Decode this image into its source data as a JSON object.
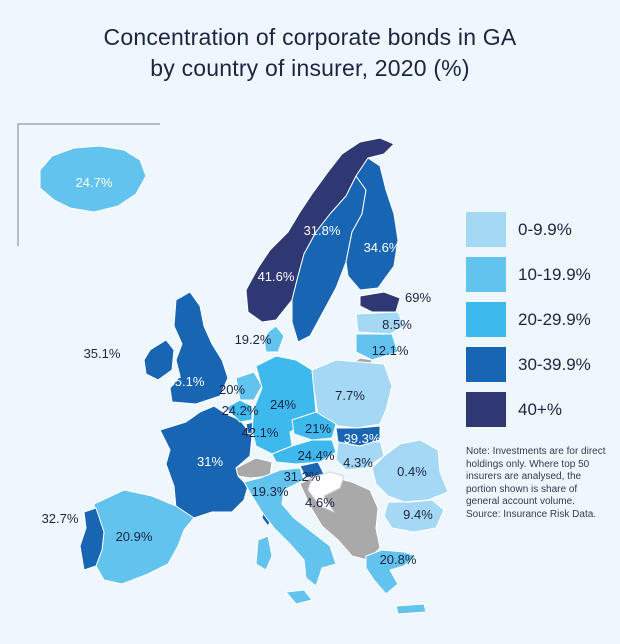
{
  "title": {
    "line1": "Concentration of corporate bonds in GA",
    "line2": "by country of insurer, 2020 (%)"
  },
  "colors": {
    "background": "#eef7fd",
    "sea": "#eef7fd",
    "bin_0_9_9": "#a4d8f5",
    "bin_10_19_9": "#63c3ef",
    "bin_20_29_9": "#3eb9ee",
    "bin_30_39_9": "#1865b4",
    "bin_40_plus": "#2f3872",
    "no_data": "#a9a9a9"
  },
  "legend": [
    {
      "label": "0-9.9%",
      "color": "#a4d8f5"
    },
    {
      "label": "10-19.9%",
      "color": "#63c3ef"
    },
    {
      "label": "20-29.9%",
      "color": "#3eb9ee"
    },
    {
      "label": "30-39.9%",
      "color": "#1865b4"
    },
    {
      "label": "40+%",
      "color": "#2f3872"
    }
  ],
  "note": "Note: Investments are for direct holdings only. Where top 50 insurers are analysed, the portion shown is share of general account volume. Source: Insurance Risk Data.",
  "countries": [
    {
      "name": "Iceland",
      "value_label": "24.7%"
    },
    {
      "name": "Norway",
      "value_label": "41.6%"
    },
    {
      "name": "Sweden",
      "value_label": "31.8%"
    },
    {
      "name": "Finland",
      "value_label": "34.6%"
    },
    {
      "name": "Estonia",
      "value_label": "69%"
    },
    {
      "name": "Latvia",
      "value_label": "8.5%"
    },
    {
      "name": "Lithuania",
      "value_label": "12.1%"
    },
    {
      "name": "Denmark",
      "value_label": "19.2%"
    },
    {
      "name": "Ireland",
      "value_label": "35.1%"
    },
    {
      "name": "United Kingdom",
      "value_label": "35.1%"
    },
    {
      "name": "Netherlands",
      "value_label": "20%"
    },
    {
      "name": "Belgium",
      "value_label": "24.2%"
    },
    {
      "name": "Luxembourg",
      "value_label": "42.1%"
    },
    {
      "name": "Germany",
      "value_label": "24%"
    },
    {
      "name": "Poland",
      "value_label": "7.7%"
    },
    {
      "name": "Czech Republic",
      "value_label": "21%"
    },
    {
      "name": "Slovakia",
      "value_label": "39.3%"
    },
    {
      "name": "Austria",
      "value_label": "24.4%"
    },
    {
      "name": "Hungary",
      "value_label": "4.3%"
    },
    {
      "name": "Slovenia",
      "value_label": "31.2%"
    },
    {
      "name": "France",
      "value_label": "31%"
    },
    {
      "name": "Italy",
      "value_label": "19.3%"
    },
    {
      "name": "Croatia",
      "value_label": "4.6%"
    },
    {
      "name": "Romania",
      "value_label": "0.4%"
    },
    {
      "name": "Bulgaria",
      "value_label": "9.4%"
    },
    {
      "name": "Greece",
      "value_label": "20.8%"
    },
    {
      "name": "Spain",
      "value_label": "20.9%"
    },
    {
      "name": "Portugal",
      "value_label": "32.7%"
    }
  ]
}
